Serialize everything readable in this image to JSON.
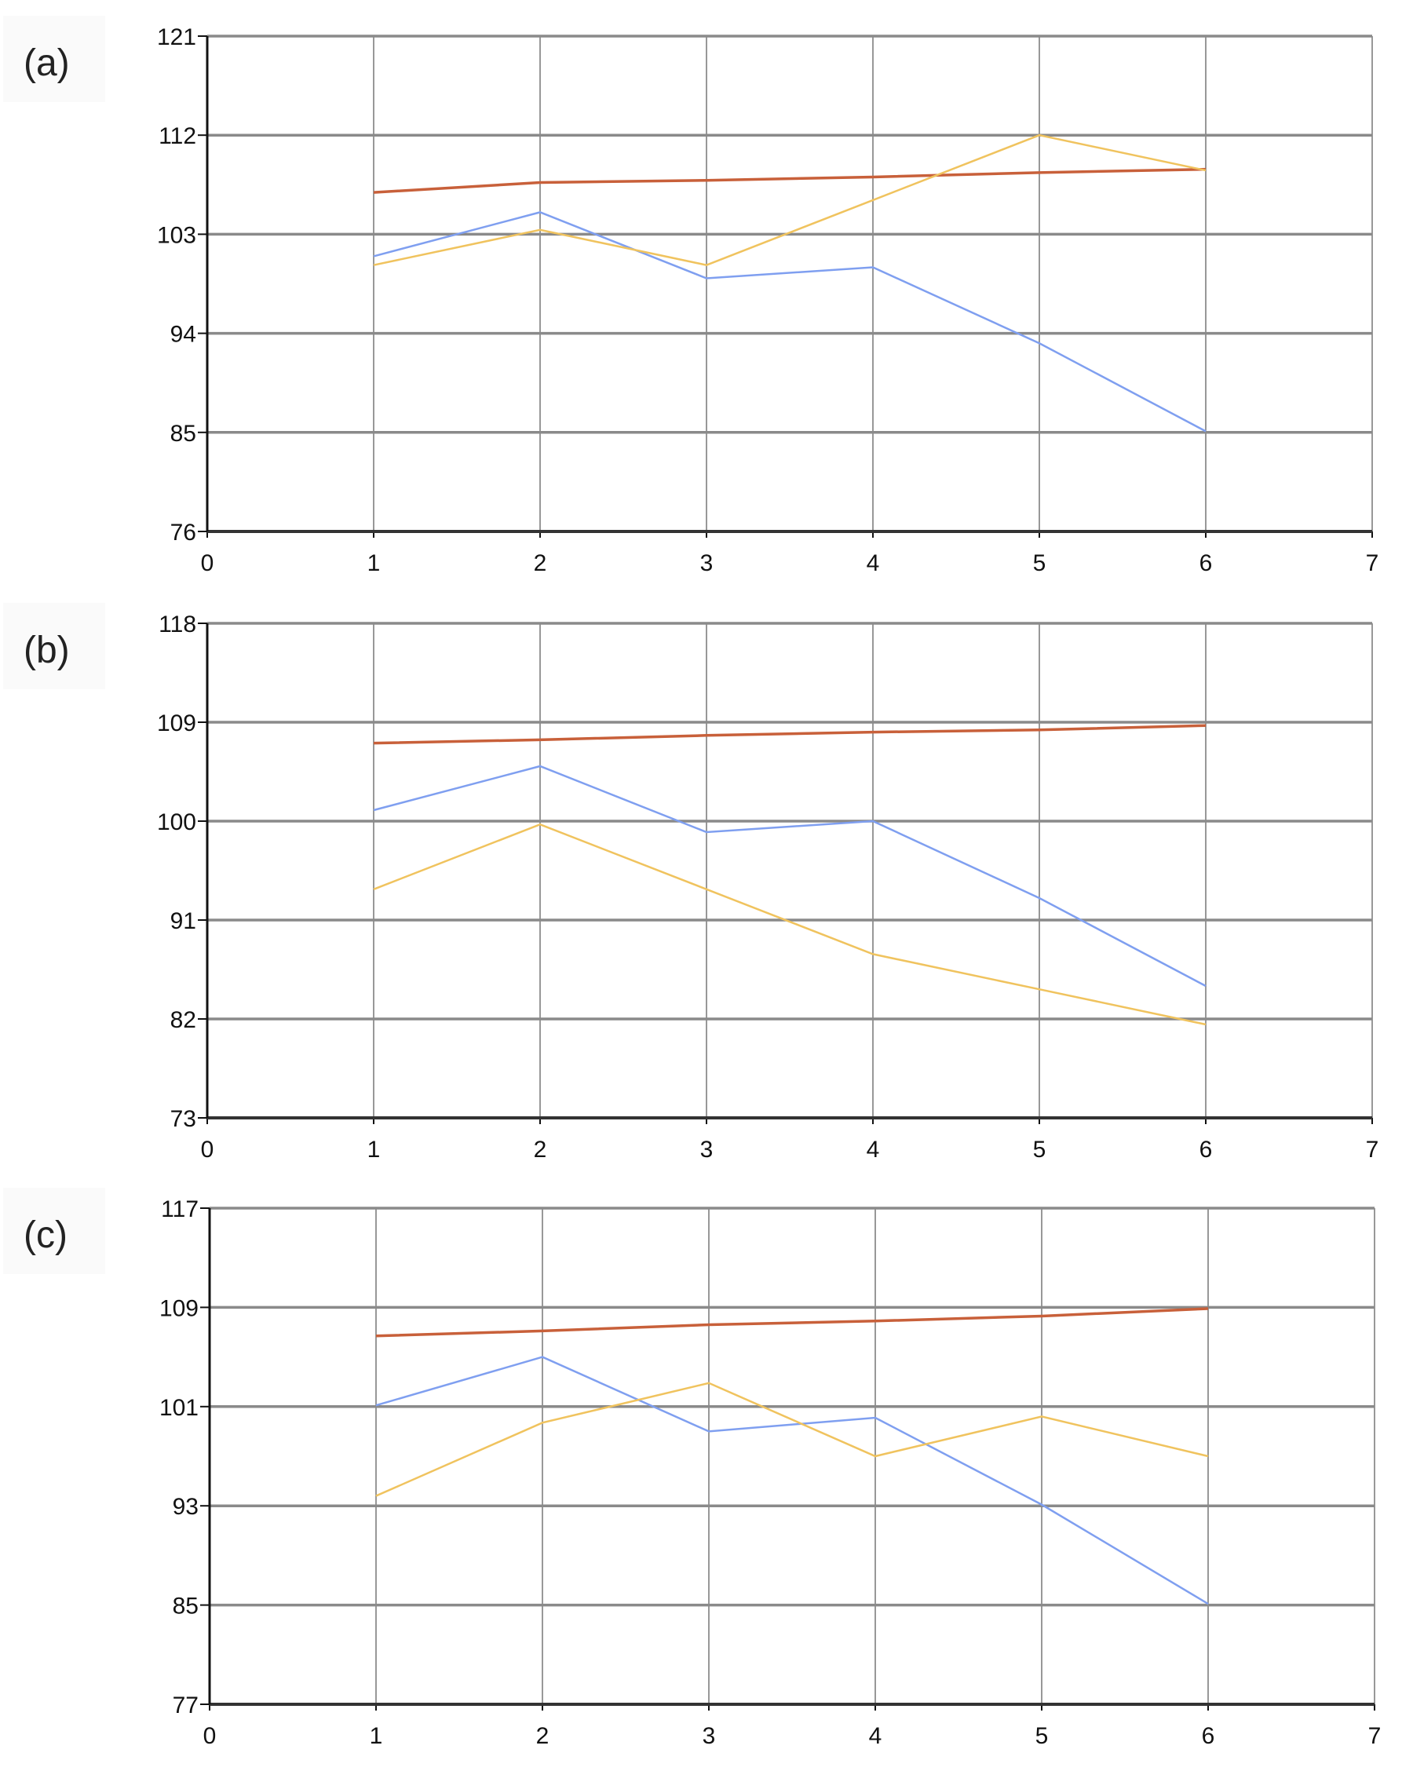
{
  "colors": {
    "series_blue": "#7f9ff0",
    "series_yellow": "#f0c35e",
    "series_red": "#c8603a",
    "grid": "#8a8a8a",
    "axis": "#111111"
  },
  "chart_data": [
    {
      "type": "line",
      "panel_label": "(a)",
      "xlim": [
        0,
        7
      ],
      "ylim": [
        76,
        121
      ],
      "x_ticks": [
        "0",
        "1",
        "2",
        "3",
        "4",
        "5",
        "6",
        "7"
      ],
      "y_ticks": [
        "76",
        "85",
        "94",
        "103",
        "112",
        "121"
      ],
      "grid": true,
      "x": [
        1,
        2,
        3,
        4,
        5,
        6
      ],
      "series": [
        {
          "name": "red",
          "values": [
            106.8,
            107.7,
            107.9,
            108.2,
            108.6,
            108.9
          ]
        },
        {
          "name": "blue",
          "values": [
            101.0,
            105.0,
            99.0,
            100.0,
            93.1,
            85.1
          ]
        },
        {
          "name": "yellow",
          "values": [
            100.2,
            103.4,
            100.2,
            106.1,
            112.0,
            108.8
          ]
        }
      ]
    },
    {
      "type": "line",
      "panel_label": "(b)",
      "xlim": [
        0,
        7
      ],
      "ylim": [
        73,
        118
      ],
      "x_ticks": [
        "0",
        "1",
        "2",
        "3",
        "4",
        "5",
        "6",
        "7"
      ],
      "y_ticks": [
        "73",
        "82",
        "91",
        "100",
        "109",
        "118"
      ],
      "grid": true,
      "x": [
        1,
        2,
        3,
        4,
        5,
        6
      ],
      "series": [
        {
          "name": "red",
          "values": [
            107.1,
            107.4,
            107.8,
            108.1,
            108.3,
            108.7
          ]
        },
        {
          "name": "blue",
          "values": [
            101.0,
            105.0,
            99.0,
            100.0,
            93.0,
            85.0
          ]
        },
        {
          "name": "yellow",
          "values": [
            93.8,
            99.7,
            93.8,
            87.9,
            84.7,
            81.5
          ]
        }
      ]
    },
    {
      "type": "line",
      "panel_label": "(c)",
      "xlim": [
        0,
        7
      ],
      "ylim": [
        77,
        117
      ],
      "x_ticks": [
        "0",
        "1",
        "2",
        "3",
        "4",
        "5",
        "6",
        "7"
      ],
      "y_ticks": [
        "77",
        "85",
        "93",
        "101",
        "109",
        "117"
      ],
      "grid": true,
      "x": [
        1,
        2,
        3,
        4,
        5,
        6
      ],
      "series": [
        {
          "name": "red",
          "values": [
            106.7,
            107.1,
            107.6,
            107.9,
            108.3,
            108.9
          ]
        },
        {
          "name": "blue",
          "values": [
            101.1,
            105.0,
            99.0,
            100.1,
            93.1,
            85.1
          ]
        },
        {
          "name": "yellow",
          "values": [
            93.8,
            99.7,
            102.9,
            97.0,
            100.2,
            97.0
          ]
        }
      ]
    }
  ]
}
